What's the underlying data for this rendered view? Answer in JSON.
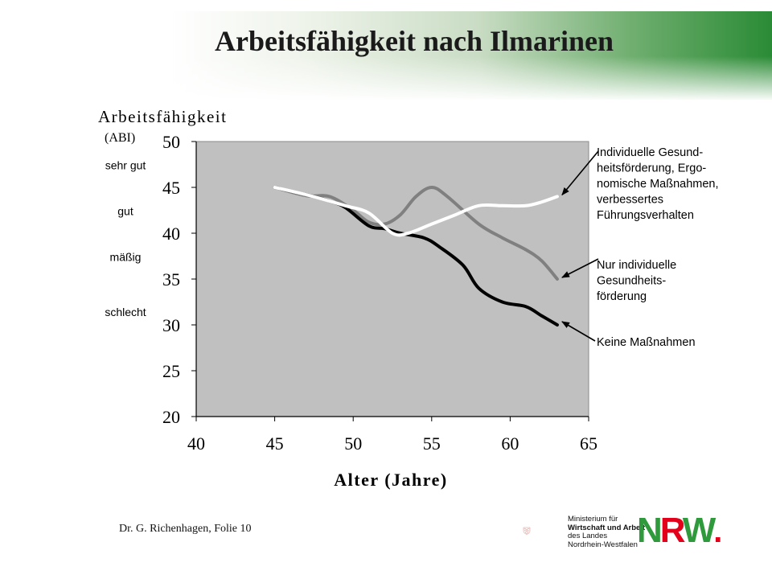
{
  "slide": {
    "title": "Arbeitsfähigkeit nach Ilmarinen",
    "footer": "Dr. G. Richenhagen, Folie 10"
  },
  "logo": {
    "ministry_line1": "Ministerium für",
    "ministry_line2": "Wirtschaft und Arbeit",
    "ministry_line3": "des Landes",
    "ministry_line4": "Nordrhein-Westfalen",
    "nrw_n": "N",
    "nrw_r": "R",
    "nrw_w": "W",
    "nrw_dot": "."
  },
  "chart_data": {
    "type": "line",
    "ylabel": "Arbeitsfähigkeit",
    "ylabel_sub": "(ABI)",
    "xlabel": "Alter (Jahre)",
    "xlim": [
      40,
      65
    ],
    "ylim": [
      20,
      50
    ],
    "xticks": [
      40,
      45,
      50,
      55,
      60,
      65
    ],
    "yticks": [
      20,
      25,
      30,
      35,
      40,
      45,
      50
    ],
    "grid": false,
    "plot_background": "#c0c0c0",
    "category_labels": [
      {
        "text": "sehr gut",
        "y": 47.5
      },
      {
        "text": "gut",
        "y": 42.5
      },
      {
        "text": "mäßig",
        "y": 37.5
      },
      {
        "text": "schlecht",
        "y": 31.5
      }
    ],
    "series": [
      {
        "name": "Keine Maßnahmen",
        "color": "#000000",
        "x": [
          45,
          47,
          48.5,
          49.5,
          51,
          52,
          53,
          54.5,
          55.5,
          57,
          58,
          59.5,
          61,
          62,
          63
        ],
        "y": [
          45,
          44.2,
          43.5,
          42.8,
          40.8,
          40.5,
          40,
          39.5,
          38.5,
          36.5,
          34,
          32.5,
          32,
          31,
          30
        ]
      },
      {
        "name": "Nur individuelle Gesundheits-förderung",
        "color": "#808080",
        "x": [
          45,
          47,
          48.5,
          50,
          51,
          52,
          53,
          54,
          55,
          56,
          58,
          59.5,
          61,
          62,
          63
        ],
        "y": [
          45,
          44.1,
          44,
          42.5,
          41.2,
          41,
          42,
          44,
          45,
          44,
          41,
          39.5,
          38.2,
          37,
          35
        ]
      },
      {
        "name": "Individuelle Gesund-heitsförderung, Ergo-nomische Maßnahmen, verbessertes Führungsverhalten",
        "color": "#ffffff",
        "x": [
          45,
          47,
          49.5,
          51,
          52.5,
          53.5,
          55,
          56.5,
          58,
          59.5,
          61,
          62,
          63
        ],
        "y": [
          45,
          44.2,
          43,
          42.2,
          40,
          40,
          41,
          42,
          43,
          43,
          43,
          43.4,
          44
        ]
      }
    ],
    "annotations": [
      {
        "lines": [
          "Individuelle Gesund-",
          "heitsförderung, Ergo-",
          "nomische Maßnahmen,",
          "verbessertes",
          "Führungsverhalten"
        ],
        "target_x": 63,
        "target_y": 44
      },
      {
        "lines": [
          "Nur individuelle",
          "Gesundheits-",
          "förderung"
        ],
        "target_x": 63,
        "target_y": 35
      },
      {
        "lines": [
          "Keine Maßnahmen"
        ],
        "target_x": 63,
        "target_y": 30
      }
    ]
  }
}
